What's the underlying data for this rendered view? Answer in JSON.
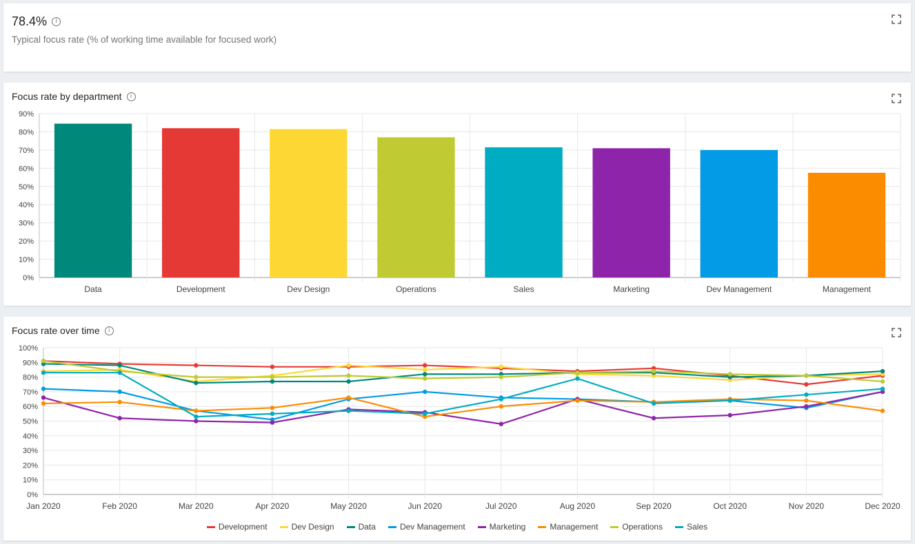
{
  "kpi": {
    "value": "78.4%",
    "subtitle": "Typical focus rate (% of working time available for focused work)",
    "info": "i"
  },
  "bar_card": {
    "title": "Focus rate by department",
    "info": "i"
  },
  "line_card": {
    "title": "Focus rate over time",
    "info": "i"
  },
  "chart_data": [
    {
      "type": "bar",
      "title": "Focus rate by department",
      "categories": [
        "Data",
        "Development",
        "Dev Design",
        "Operations",
        "Sales",
        "Marketing",
        "Dev Management",
        "Management"
      ],
      "values": [
        84.5,
        82,
        81.5,
        77,
        71.5,
        71,
        70,
        57.5
      ],
      "colors": [
        "#00897b",
        "#e53935",
        "#fdd835",
        "#c0ca33",
        "#00acc1",
        "#8e24aa",
        "#039be5",
        "#fb8c00"
      ],
      "ylim": [
        0,
        90
      ],
      "yticks": [
        "0%",
        "10%",
        "20%",
        "30%",
        "40%",
        "50%",
        "60%",
        "70%",
        "80%",
        "90%"
      ],
      "grid": true
    },
    {
      "type": "line",
      "title": "Focus rate over time",
      "x": [
        "Jan 2020",
        "Feb 2020",
        "Mar 2020",
        "Apr 2020",
        "May 2020",
        "Jun 2020",
        "Jul 2020",
        "Aug 2020",
        "Sep 2020",
        "Oct 2020",
        "Nov 2020",
        "Dec 2020"
      ],
      "ylim": [
        0,
        100
      ],
      "yticks": [
        "0%",
        "10%",
        "20%",
        "30%",
        "40%",
        "50%",
        "60%",
        "70%",
        "80%",
        "90%",
        "100%"
      ],
      "grid": true,
      "legend_position": "bottom",
      "series": [
        {
          "name": "Development",
          "color": "#e53935",
          "values": [
            91,
            89,
            88,
            87,
            87,
            88,
            86,
            84,
            86,
            81,
            75,
            81
          ]
        },
        {
          "name": "Dev Design",
          "color": "#fdd835",
          "values": [
            84,
            85,
            77,
            81,
            88,
            85,
            87,
            82,
            81,
            78,
            81,
            82
          ]
        },
        {
          "name": "Data",
          "color": "#00897b",
          "values": [
            89,
            88,
            76,
            77,
            77,
            82,
            82,
            83,
            83,
            80,
            81,
            84
          ]
        },
        {
          "name": "Dev Management",
          "color": "#039be5",
          "values": [
            72,
            70,
            57,
            51,
            65,
            70,
            66,
            65,
            63,
            64,
            59,
            70
          ]
        },
        {
          "name": "Marketing",
          "color": "#8e24aa",
          "values": [
            66,
            52,
            50,
            49,
            58,
            56,
            48,
            65,
            52,
            54,
            60,
            70
          ]
        },
        {
          "name": "Management",
          "color": "#fb8c00",
          "values": [
            62,
            63,
            57,
            59,
            66,
            53,
            60,
            64,
            63,
            65,
            64,
            57
          ]
        },
        {
          "name": "Operations",
          "color": "#c0ca33",
          "values": [
            91,
            84,
            80,
            80,
            81,
            79,
            80,
            83,
            84,
            82,
            81,
            77
          ]
        },
        {
          "name": "Sales",
          "color": "#00acc1",
          "values": [
            83,
            83,
            53,
            55,
            57,
            55,
            65,
            79,
            62,
            64,
            68,
            72
          ]
        }
      ]
    }
  ]
}
